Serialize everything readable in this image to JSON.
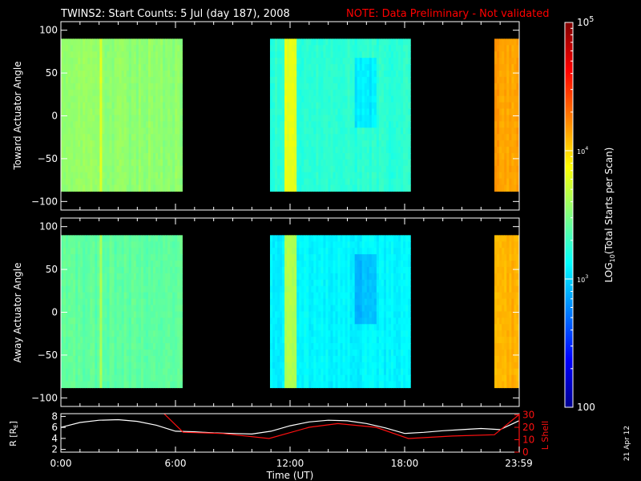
{
  "title": {
    "main": "TWINS2: Start Counts:  5 Jul (day 187), 2008",
    "note": "NOTE: Data Preliminary - Not validated"
  },
  "colors": {
    "background": "#000000",
    "note": "#ff0000",
    "axes": "#ffffff",
    "l_shell_line": "#ff1010",
    "r_line": "#ffffff"
  },
  "date_stamp": "21 Apr 12",
  "chart_data": [
    {
      "type": "heatmap",
      "name": "toward-panel",
      "ylabel": "Toward Actuator Angle",
      "ylim": [
        -110,
        110
      ],
      "yticks": [
        100,
        50,
        0,
        -50,
        -100
      ],
      "data_angle_range": [
        -88,
        90
      ],
      "xlim_hours": [
        0,
        24
      ],
      "segments": [
        {
          "start_hour": 0.0,
          "end_hour": 6.35,
          "log10_counts": 3.55
        },
        {
          "start_hour": 10.95,
          "end_hour": 18.3,
          "log10_counts": 3.25
        },
        {
          "start_hour": 22.7,
          "end_hour": 23.98,
          "log10_counts": 4.15
        }
      ]
    },
    {
      "type": "heatmap",
      "name": "away-panel",
      "ylabel": "Away Actuator Angle",
      "ylim": [
        -110,
        110
      ],
      "yticks": [
        100,
        50,
        0,
        -50,
        -100
      ],
      "data_angle_range": [
        -88,
        90
      ],
      "xlim_hours": [
        0,
        24
      ],
      "segments": [
        {
          "start_hour": 0.0,
          "end_hour": 6.35,
          "log10_counts": 3.4
        },
        {
          "start_hour": 10.95,
          "end_hour": 18.3,
          "log10_counts": 3.1
        },
        {
          "start_hour": 22.7,
          "end_hour": 23.98,
          "log10_counts": 4.1
        }
      ]
    },
    {
      "type": "line",
      "name": "orbit-panel",
      "ylabel_left": "R [R",
      "ylabel_left_sub": "E",
      "ylabel_left_end": "]",
      "ylabel_right": "L Shell",
      "ylim_left": [
        1.5,
        8.5
      ],
      "yticks_left": [
        8,
        6,
        4,
        2
      ],
      "ylim_right": [
        0,
        31
      ],
      "yticks_right": [
        30,
        20,
        10,
        0
      ],
      "xlabel": "Time (UT)",
      "xticks": [
        {
          "hour": 0,
          "label": "0:00"
        },
        {
          "hour": 6,
          "label": "6:00"
        },
        {
          "hour": 12,
          "label": "12:00"
        },
        {
          "hour": 18,
          "label": "18:00"
        },
        {
          "hour": 23.98,
          "label": "23:59"
        }
      ],
      "series": [
        {
          "name": "R",
          "hours": [
            0,
            1,
            2,
            3,
            4,
            5,
            6,
            7,
            8,
            9,
            10,
            11,
            12,
            13,
            14,
            15,
            16,
            17,
            18,
            19,
            20,
            21,
            22,
            23,
            23.98
          ],
          "values": [
            6.0,
            6.9,
            7.3,
            7.4,
            7.1,
            6.4,
            5.3,
            5.2,
            5.0,
            4.9,
            4.8,
            5.3,
            6.3,
            7.0,
            7.3,
            7.2,
            6.7,
            5.9,
            4.9,
            5.1,
            5.4,
            5.6,
            5.8,
            5.6,
            7.2
          ]
        },
        {
          "name": "L Shell",
          "hours": [
            5.4,
            6.4,
            8.5,
            10.9,
            13.0,
            14.5,
            16.5,
            18.2,
            20.5,
            22.7,
            23.98
          ],
          "values": [
            31,
            16,
            15,
            11,
            20,
            23,
            20,
            11,
            13,
            14,
            30
          ]
        }
      ]
    }
  ],
  "colorbar": {
    "label": "LOG",
    "label_sub": "10",
    "label_end": "(Total Starts per Scan)",
    "log_range": [
      2,
      5
    ],
    "ticks": [
      {
        "log": 5,
        "base": "10",
        "exp": "5",
        "size": "major"
      },
      {
        "log": 4,
        "base": "10",
        "exp": "4",
        "size": "minor"
      },
      {
        "log": 3,
        "base": "10",
        "exp": "3",
        "size": "minor"
      },
      {
        "log": 2,
        "base": "100",
        "exp": "",
        "size": "major"
      }
    ]
  }
}
